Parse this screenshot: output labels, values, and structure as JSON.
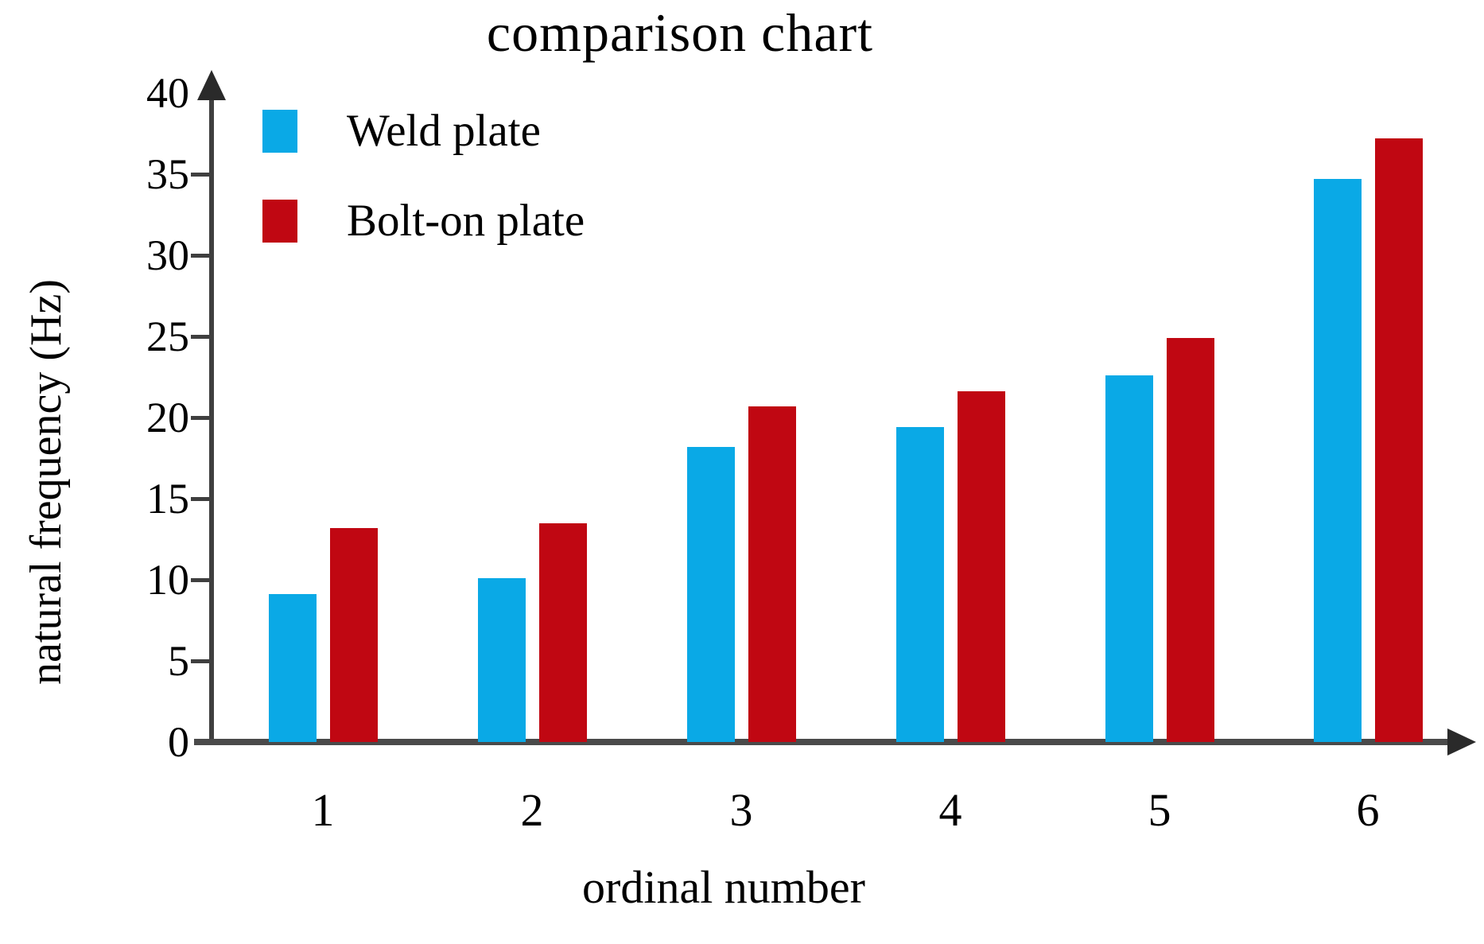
{
  "chart_data": {
    "type": "bar",
    "title": "comparison chart",
    "xlabel": "ordinal number",
    "ylabel": "natural frequency (Hz)",
    "categories": [
      "1",
      "2",
      "3",
      "4",
      "5",
      "6"
    ],
    "series": [
      {
        "name": "Weld plate",
        "color": "#0AA9E6",
        "values": [
          9.1,
          10.1,
          18.2,
          19.4,
          22.6,
          34.7
        ]
      },
      {
        "name": "Bolt-on plate",
        "color": "#C00712",
        "values": [
          13.2,
          13.5,
          20.7,
          21.6,
          24.9,
          37.2
        ]
      }
    ],
    "ylim": [
      0,
      40
    ],
    "yticks": [
      0,
      5,
      10,
      15,
      20,
      25,
      30,
      35,
      40
    ],
    "legend_position": "top-left",
    "grid": false,
    "axis_color": "#4a4a4a",
    "text_color": "#000000"
  }
}
